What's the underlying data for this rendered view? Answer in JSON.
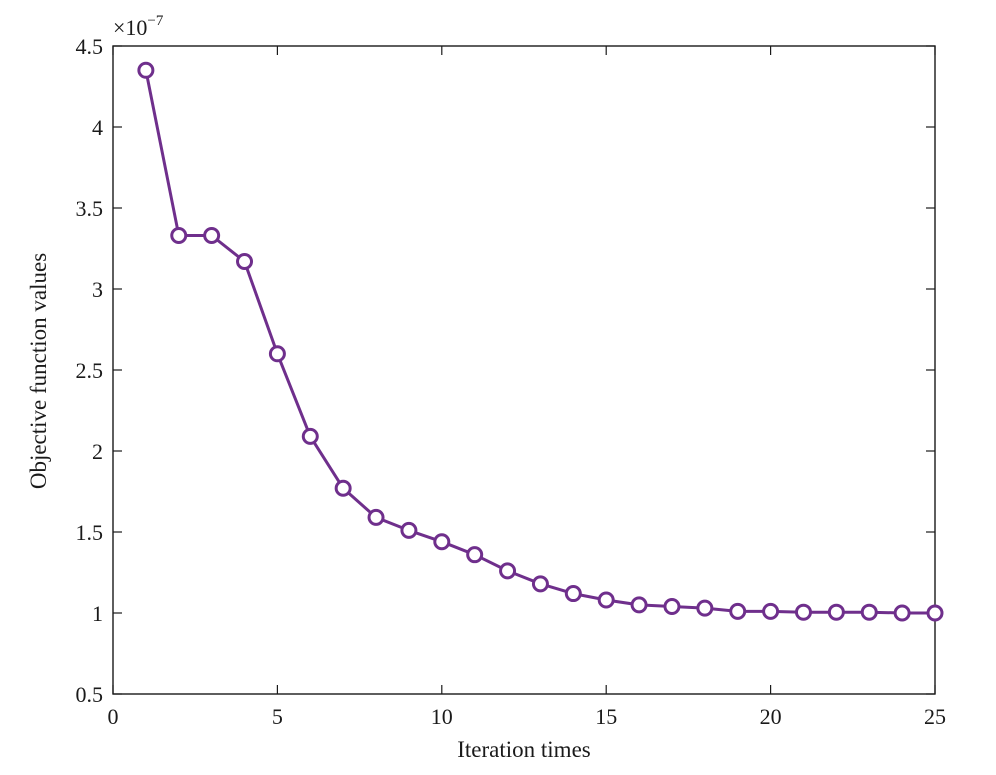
{
  "chart_data": {
    "type": "line",
    "title": "",
    "xlabel": "Iteration times",
    "ylabel": "Objective function values",
    "y_multiplier": {
      "base": "×10",
      "exponent": "−7"
    },
    "xlim": [
      0,
      25
    ],
    "ylim": [
      0.5,
      4.5
    ],
    "x_ticks": [
      0,
      5,
      10,
      15,
      20,
      25
    ],
    "x_tick_labels": [
      "0",
      "5",
      "10",
      "15",
      "20",
      "25"
    ],
    "y_ticks": [
      0.5,
      1,
      1.5,
      2,
      2.5,
      3,
      3.5,
      4,
      4.5
    ],
    "y_tick_labels": [
      "0.5",
      "1",
      "1.5",
      "2",
      "2.5",
      "3",
      "3.5",
      "4",
      "4.5"
    ],
    "grid": false,
    "box": true,
    "series": [
      {
        "color": "#6f2f8c",
        "marker": "circle",
        "x": [
          1,
          2,
          3,
          4,
          5,
          6,
          7,
          8,
          9,
          10,
          11,
          12,
          13,
          14,
          15,
          16,
          17,
          18,
          19,
          20,
          21,
          22,
          23,
          24,
          25
        ],
        "y": [
          4.35,
          3.33,
          3.33,
          3.17,
          2.6,
          2.09,
          1.77,
          1.59,
          1.51,
          1.44,
          1.36,
          1.26,
          1.18,
          1.12,
          1.08,
          1.05,
          1.04,
          1.03,
          1.01,
          1.01,
          1.005,
          1.005,
          1.005,
          1.0,
          1.0
        ]
      }
    ]
  }
}
